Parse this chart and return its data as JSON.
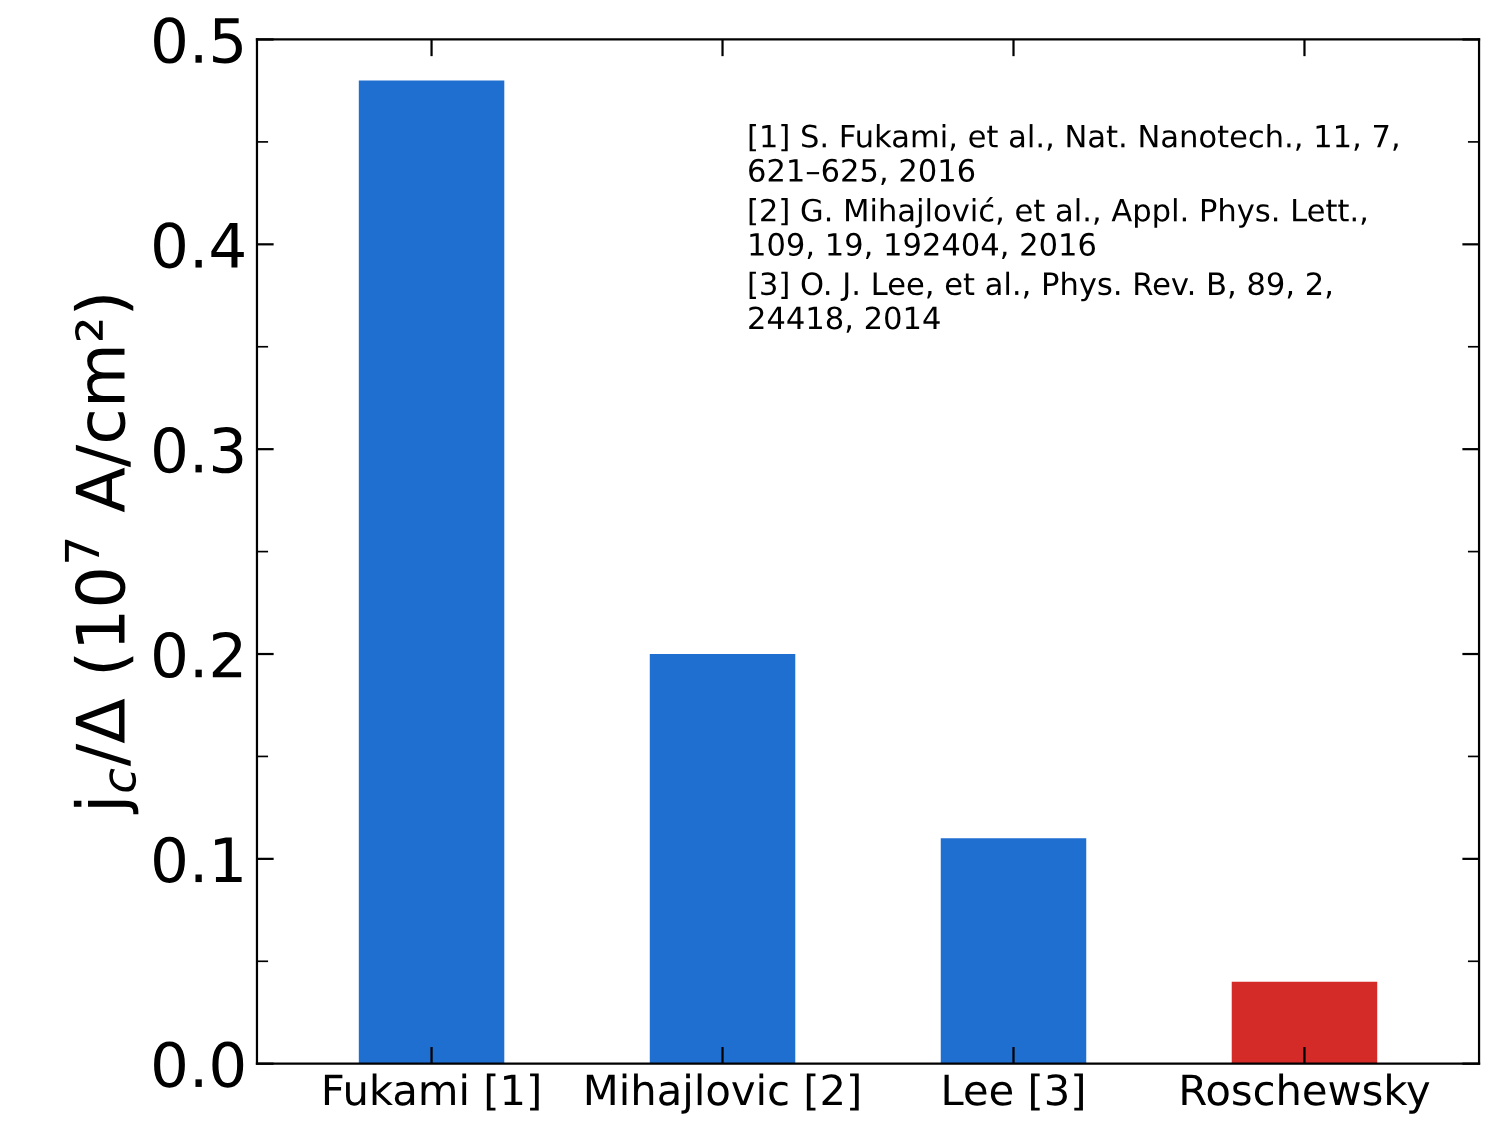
{
  "chart_data": {
    "type": "bar",
    "ylabel": "j$_{c}$/Δ (10$^{7}$ A/cm²)",
    "categories": [
      "Fukami [1]",
      "Mihajlovic [2]",
      "Lee [3]",
      "Roschewsky"
    ],
    "values": [
      0.48,
      0.2,
      0.11,
      0.04
    ],
    "colors": [
      "#1f6fd0",
      "#1f6fd0",
      "#1f6fd0",
      "#d42a28"
    ],
    "ylim": [
      0,
      0.5
    ],
    "yticks": [
      {
        "value": 0,
        "label": "0.0"
      },
      0.1,
      0.2,
      0.3,
      0.4,
      0.5
    ],
    "annotations": [
      "[1] S. Fukami, et al., Nat. Nanotech., 11, 7, 621–625, 2016",
      "[2] G. Mihajlović, et al., Appl. Phys. Lett., 109, 19, 192404, 2016",
      "[3] O. J. Lee, et al., Phys. Rev. B, 89, 2, 24418, 2014"
    ],
    "grid": false,
    "legend": false
  }
}
